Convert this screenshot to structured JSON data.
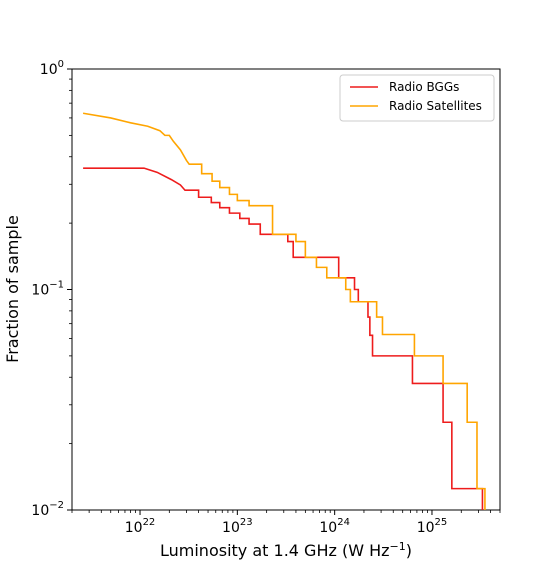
{
  "chart_data": {
    "type": "line",
    "title": "",
    "xlabel_main": "Luminosity at 1.4 GHz (W Hz",
    "xlabel_sup": "−1",
    "xlabel_end": ")",
    "ylabel": "Fraction of sample",
    "x_scale": "log",
    "y_scale": "log",
    "xlim": [
      2e+21,
      5e+25
    ],
    "ylim": [
      0.01,
      1.0
    ],
    "x_ticks": [
      {
        "base": "10",
        "exp": "22",
        "value": 1e+22
      },
      {
        "base": "10",
        "exp": "23",
        "value": 1e+23
      },
      {
        "base": "10",
        "exp": "24",
        "value": 1e+24
      },
      {
        "base": "10",
        "exp": "25",
        "value": 1e+25
      }
    ],
    "y_ticks": [
      {
        "base": "10",
        "exp": "−2",
        "value": 0.01
      },
      {
        "base": "10",
        "exp": "−1",
        "value": 0.1
      },
      {
        "base": "10",
        "exp": "0",
        "value": 1.0
      }
    ],
    "legend_position": "top-right",
    "grid": false,
    "series": [
      {
        "name": "Radio BGGs",
        "color": "#ee1c1c",
        "points": [
          [
            2.6e+21,
            0.355
          ],
          [
            1.1e+22,
            0.355
          ],
          [
            1.5e+22,
            0.34
          ],
          [
            2.1e+22,
            0.315
          ],
          [
            2.6e+22,
            0.298
          ],
          [
            2.9e+22,
            0.282
          ],
          [
            4e+22,
            0.282
          ],
          [
            4e+22,
            0.262
          ],
          [
            5.4e+22,
            0.262
          ],
          [
            5.4e+22,
            0.248
          ],
          [
            6.6e+22,
            0.248
          ],
          [
            6.6e+22,
            0.235
          ],
          [
            8.3e+22,
            0.235
          ],
          [
            8.3e+22,
            0.222
          ],
          [
            1.06e+23,
            0.222
          ],
          [
            1.06e+23,
            0.21
          ],
          [
            1.32e+23,
            0.21
          ],
          [
            1.32e+23,
            0.198
          ],
          [
            1.72e+23,
            0.198
          ],
          [
            1.72e+23,
            0.178
          ],
          [
            3.3e+23,
            0.178
          ],
          [
            3.3e+23,
            0.165
          ],
          [
            3.75e+23,
            0.165
          ],
          [
            3.75e+23,
            0.14
          ],
          [
            1.1e+24,
            0.14
          ],
          [
            1.1e+24,
            0.113
          ],
          [
            1.6e+24,
            0.113
          ],
          [
            1.6e+24,
            0.1
          ],
          [
            1.75e+24,
            0.1
          ],
          [
            1.75e+24,
            0.088
          ],
          [
            2.2e+24,
            0.088
          ],
          [
            2.2e+24,
            0.075
          ],
          [
            2.3e+24,
            0.075
          ],
          [
            2.3e+24,
            0.062
          ],
          [
            2.45e+24,
            0.062
          ],
          [
            2.45e+24,
            0.05
          ],
          [
            6.3e+24,
            0.05
          ],
          [
            6.3e+24,
            0.0375
          ],
          [
            1.3e+25,
            0.0375
          ],
          [
            1.3e+25,
            0.025
          ],
          [
            1.6e+25,
            0.025
          ],
          [
            1.6e+25,
            0.0125
          ],
          [
            3.3e+25,
            0.0125
          ],
          [
            3.3e+25,
            0.01
          ]
        ]
      },
      {
        "name": "Radio Satellites",
        "color": "#ffa500",
        "points": [
          [
            2.6e+21,
            0.63
          ],
          [
            5e+21,
            0.6
          ],
          [
            8e+21,
            0.57
          ],
          [
            1.2e+22,
            0.55
          ],
          [
            1.6e+22,
            0.525
          ],
          [
            1.8e+22,
            0.5
          ],
          [
            2e+22,
            0.5
          ],
          [
            2.2e+22,
            0.47
          ],
          [
            2.6e+22,
            0.43
          ],
          [
            3e+22,
            0.385
          ],
          [
            3.2e+22,
            0.37
          ],
          [
            4.3e+22,
            0.37
          ],
          [
            4.3e+22,
            0.335
          ],
          [
            5.5e+22,
            0.335
          ],
          [
            5.5e+22,
            0.31
          ],
          [
            6.6e+22,
            0.31
          ],
          [
            6.6e+22,
            0.29
          ],
          [
            8.3e+22,
            0.29
          ],
          [
            8.3e+22,
            0.27
          ],
          [
            1e+23,
            0.27
          ],
          [
            1e+23,
            0.253
          ],
          [
            1.32e+23,
            0.253
          ],
          [
            1.32e+23,
            0.24
          ],
          [
            2.3e+23,
            0.24
          ],
          [
            2.3e+23,
            0.178
          ],
          [
            4e+23,
            0.178
          ],
          [
            4e+23,
            0.165
          ],
          [
            5e+23,
            0.165
          ],
          [
            5e+23,
            0.14
          ],
          [
            6.5e+23,
            0.14
          ],
          [
            6.5e+23,
            0.126
          ],
          [
            8.3e+23,
            0.126
          ],
          [
            8.3e+23,
            0.113
          ],
          [
            1.3e+24,
            0.113
          ],
          [
            1.3e+24,
            0.1
          ],
          [
            1.45e+24,
            0.1
          ],
          [
            1.45e+24,
            0.088
          ],
          [
            2.7e+24,
            0.088
          ],
          [
            2.7e+24,
            0.075
          ],
          [
            3.1e+24,
            0.075
          ],
          [
            3.1e+24,
            0.0625
          ],
          [
            6.6e+24,
            0.0625
          ],
          [
            6.6e+24,
            0.05
          ],
          [
            1.3e+25,
            0.05
          ],
          [
            1.3e+25,
            0.0375
          ],
          [
            2.3e+25,
            0.0375
          ],
          [
            2.3e+25,
            0.025
          ],
          [
            2.9e+25,
            0.025
          ],
          [
            2.9e+25,
            0.0125
          ],
          [
            3.5e+25,
            0.0125
          ],
          [
            3.5e+25,
            0.01
          ]
        ]
      }
    ]
  }
}
